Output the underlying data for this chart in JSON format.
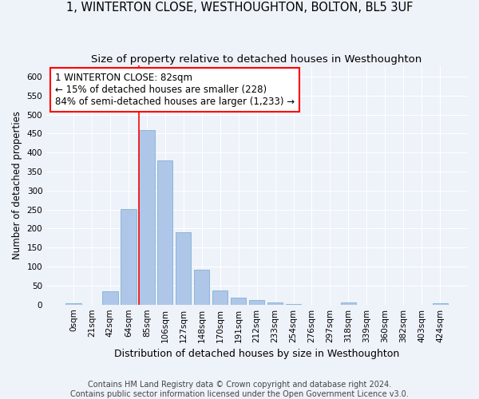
{
  "title": "1, WINTERTON CLOSE, WESTHOUGHTON, BOLTON, BL5 3UF",
  "subtitle": "Size of property relative to detached houses in Westhoughton",
  "xlabel": "Distribution of detached houses by size in Westhoughton",
  "ylabel": "Number of detached properties",
  "footer_line1": "Contains HM Land Registry data © Crown copyright and database right 2024.",
  "footer_line2": "Contains public sector information licensed under the Open Government Licence v3.0.",
  "bar_labels": [
    "0sqm",
    "21sqm",
    "42sqm",
    "64sqm",
    "85sqm",
    "106sqm",
    "127sqm",
    "148sqm",
    "170sqm",
    "191sqm",
    "212sqm",
    "233sqm",
    "254sqm",
    "276sqm",
    "297sqm",
    "318sqm",
    "339sqm",
    "360sqm",
    "382sqm",
    "403sqm",
    "424sqm"
  ],
  "bar_values": [
    4,
    0,
    36,
    252,
    460,
    380,
    190,
    91,
    38,
    19,
    11,
    5,
    2,
    0,
    0,
    5,
    0,
    0,
    0,
    0,
    3
  ],
  "bar_color": "#aec6e8",
  "bar_edge_color": "#7fb3d3",
  "vline_color": "red",
  "vline_x_bar_index": 4,
  "annotation_text": "1 WINTERTON CLOSE: 82sqm\n← 15% of detached houses are smaller (228)\n84% of semi-detached houses are larger (1,233) →",
  "annotation_box_facecolor": "white",
  "annotation_box_edgecolor": "red",
  "ylim": [
    0,
    630
  ],
  "yticks": [
    0,
    50,
    100,
    150,
    200,
    250,
    300,
    350,
    400,
    450,
    500,
    550,
    600
  ],
  "background_color": "#eef2f9",
  "grid_color": "white",
  "title_fontsize": 10.5,
  "subtitle_fontsize": 9.5,
  "xlabel_fontsize": 9,
  "ylabel_fontsize": 8.5,
  "tick_fontsize": 7.5,
  "annotation_fontsize": 8.5,
  "footer_fontsize": 7
}
